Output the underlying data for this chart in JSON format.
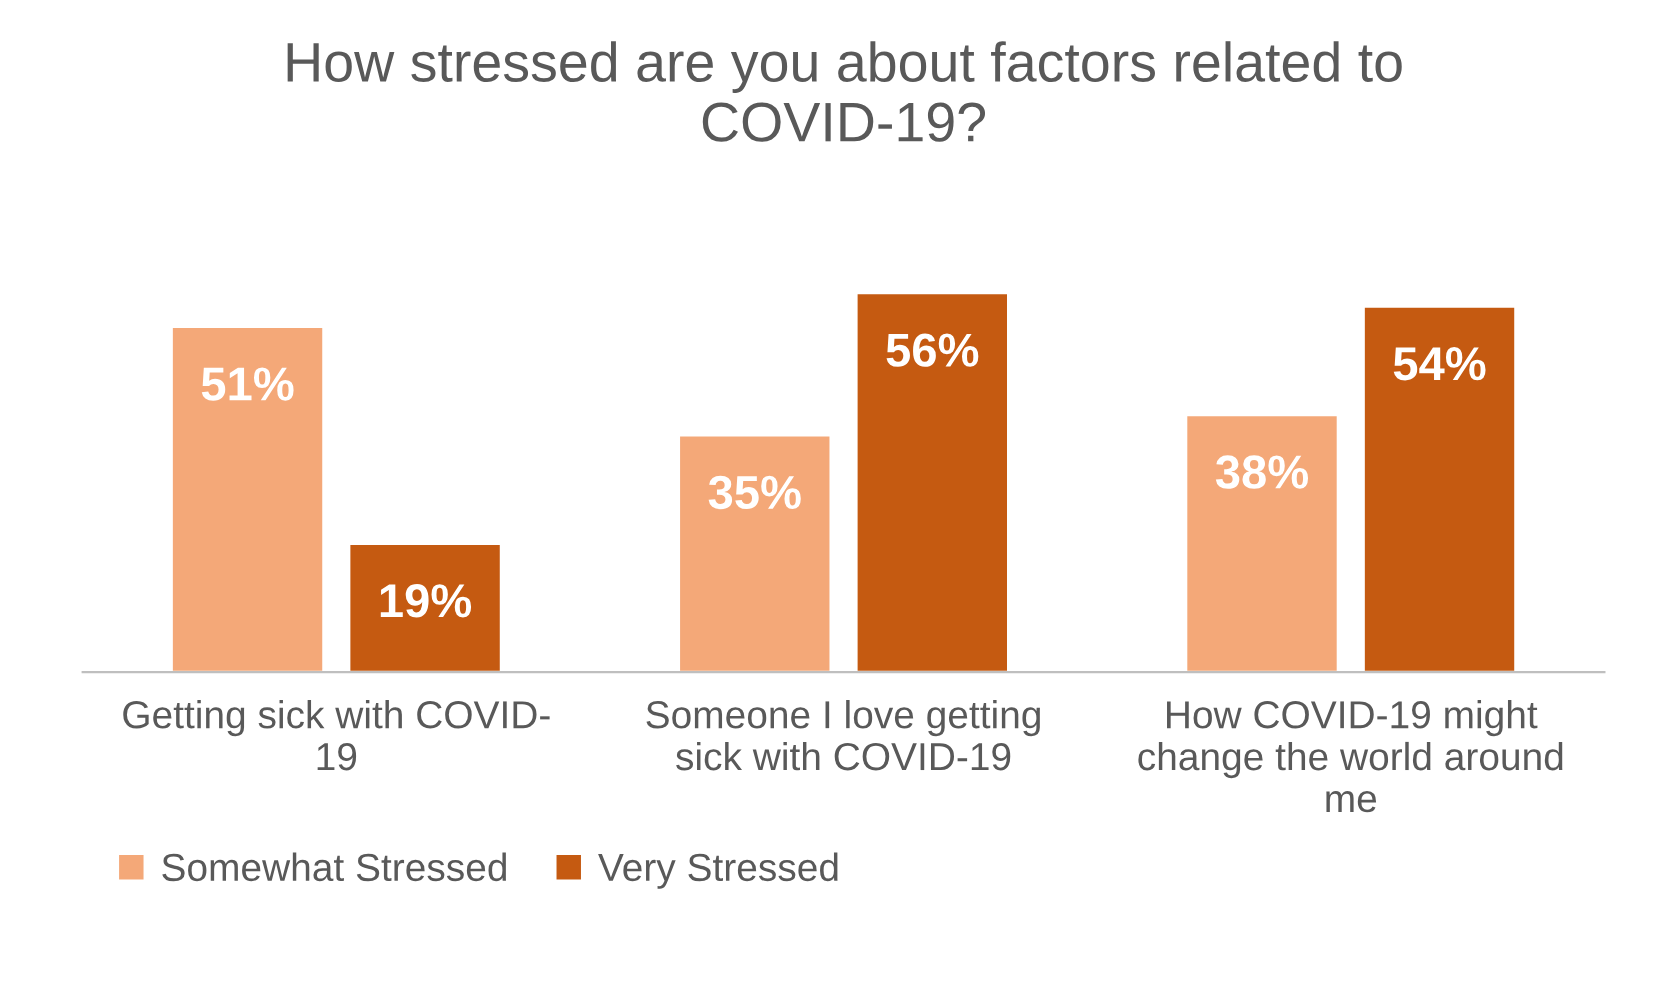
{
  "chart_data": {
    "type": "bar",
    "title": "How stressed are you about factors related to\nCOVID-19?",
    "categories": [
      "Getting sick with COVID-\n19",
      "Someone I love getting\nsick with COVID-19",
      "How COVID-19 might\nchange the world around\nme"
    ],
    "series": [
      {
        "name": "Somewhat Stressed",
        "color": "#f4a878",
        "values": [
          51,
          35,
          38
        ],
        "value_labels": [
          "51%",
          "35%",
          "38%"
        ]
      },
      {
        "name": "Very Stressed",
        "color": "#c55a11",
        "values": [
          19,
          56,
          54
        ],
        "value_labels": [
          "19%",
          "56%",
          "54%"
        ]
      }
    ],
    "grid": false,
    "legend": "bottom"
  }
}
